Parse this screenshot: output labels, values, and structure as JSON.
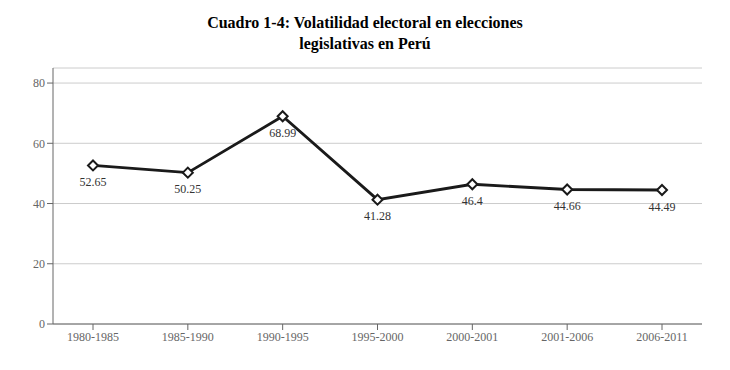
{
  "chart_data": {
    "type": "line",
    "title": "Cuadro 1-4: Volatilidad electoral en elecciones\nlegislativas en Perú",
    "categories": [
      "1980-1985",
      "1985-1990",
      "1990-1995",
      "1995-2000",
      "2000-2001",
      "2001-2006",
      "2006-2011"
    ],
    "values": [
      52.65,
      50.25,
      68.99,
      41.28,
      46.4,
      44.66,
      44.49
    ],
    "color": "#1a1a1a",
    "marker": "diamond",
    "ylim": [
      0,
      85
    ],
    "yticks": [
      0,
      20,
      40,
      60,
      80
    ],
    "grid": true,
    "data_labels": true
  }
}
